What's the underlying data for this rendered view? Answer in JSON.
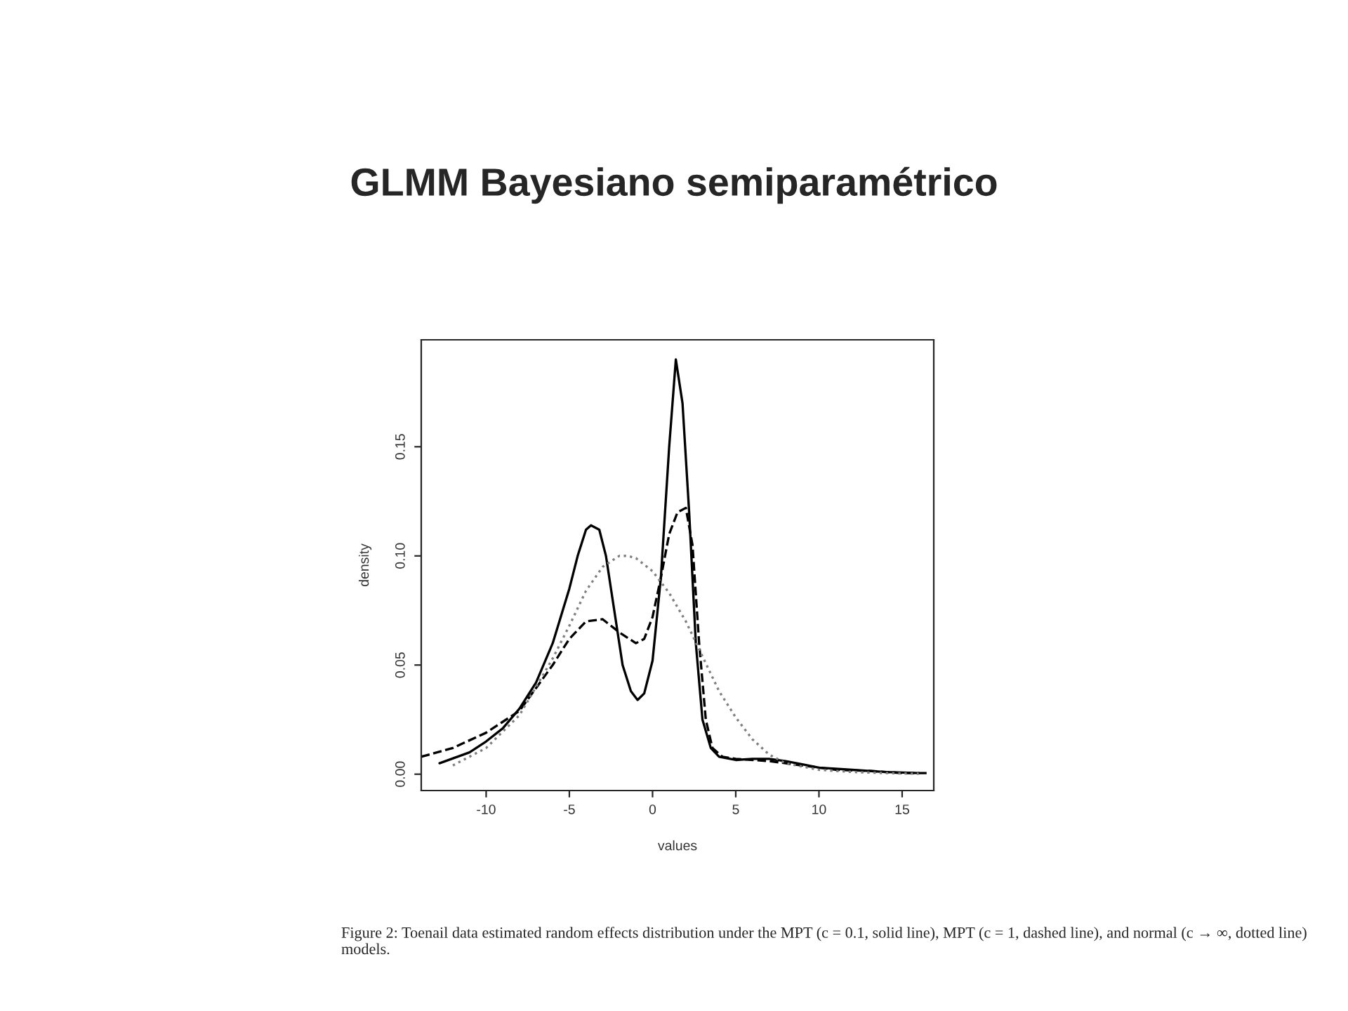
{
  "chart_data": {
    "type": "line",
    "title": "GLMM Bayesiano semiparamétrico",
    "xlabel": "values",
    "ylabel": "density",
    "xlim": [
      -13.9,
      16.9
    ],
    "ylim": [
      -0.0075,
      0.199
    ],
    "xticks": [
      -10,
      -5,
      0,
      5,
      10,
      15
    ],
    "yticks": [
      {
        "value": 0,
        "label": "0.00"
      },
      0.05,
      {
        "value": 0.1,
        "label": "0.10"
      },
      0.15
    ],
    "grid": false,
    "legend": false,
    "series": [
      {
        "color": "#000000",
        "line_style": "solid",
        "x": [
          -12.8,
          -11,
          -10,
          -9,
          -8,
          -7,
          -6,
          -5,
          -4.5,
          -4,
          -3.7,
          -3.2,
          -2.8,
          -2.3,
          -1.8,
          -1.3,
          -0.9,
          -0.5,
          0,
          0.5,
          1,
          1.4,
          1.8,
          2.2,
          2.6,
          3,
          3.5,
          4,
          5,
          6,
          7,
          8,
          9,
          10,
          12,
          14,
          16
        ],
        "values": [
          0.005,
          0.01,
          0.015,
          0.021,
          0.03,
          0.042,
          0.06,
          0.085,
          0.1,
          0.112,
          0.114,
          0.112,
          0.1,
          0.075,
          0.05,
          0.038,
          0.034,
          0.037,
          0.052,
          0.09,
          0.15,
          0.19,
          0.17,
          0.12,
          0.06,
          0.025,
          0.012,
          0.008,
          0.0065,
          0.007,
          0.007,
          0.006,
          0.0045,
          0.003,
          0.002,
          0.001,
          0.0005
        ]
      },
      {
        "color": "#000000",
        "line_style": "dashed",
        "x": [
          -13.9,
          -12,
          -10,
          -8,
          -6,
          -5,
          -4,
          -3,
          -2,
          -1,
          -0.5,
          0,
          0.5,
          1,
          1.5,
          2,
          2.4,
          2.8,
          3.2,
          3.6,
          4.2,
          5,
          7,
          9,
          11,
          13,
          15,
          16.5
        ],
        "values": [
          0.008,
          0.012,
          0.019,
          0.029,
          0.05,
          0.062,
          0.07,
          0.071,
          0.065,
          0.06,
          0.062,
          0.072,
          0.09,
          0.11,
          0.12,
          0.122,
          0.105,
          0.06,
          0.025,
          0.012,
          0.008,
          0.007,
          0.006,
          0.004,
          0.002,
          0.0015,
          0.0005,
          0.0005
        ]
      },
      {
        "color": "#808080",
        "line_style": "dotted",
        "x": [
          -12,
          -10,
          -8,
          -6,
          -5,
          -4,
          -3,
          -2,
          -1.5,
          -1,
          0,
          1,
          2,
          3,
          4,
          5,
          6,
          7,
          8,
          10,
          12,
          14,
          16
        ],
        "values": [
          0.004,
          0.012,
          0.027,
          0.053,
          0.068,
          0.084,
          0.095,
          0.1,
          0.1,
          0.099,
          0.093,
          0.083,
          0.07,
          0.054,
          0.038,
          0.026,
          0.016,
          0.009,
          0.005,
          0.002,
          0.001,
          0.0005,
          0.0002
        ]
      }
    ],
    "annotations": [
      "Figure 2: Toenail data estimated random effects distribution under the MPT (c = 0.1, solid line), MPT (c = 1, dashed line), and normal (c → ∞, dotted line) models."
    ]
  }
}
